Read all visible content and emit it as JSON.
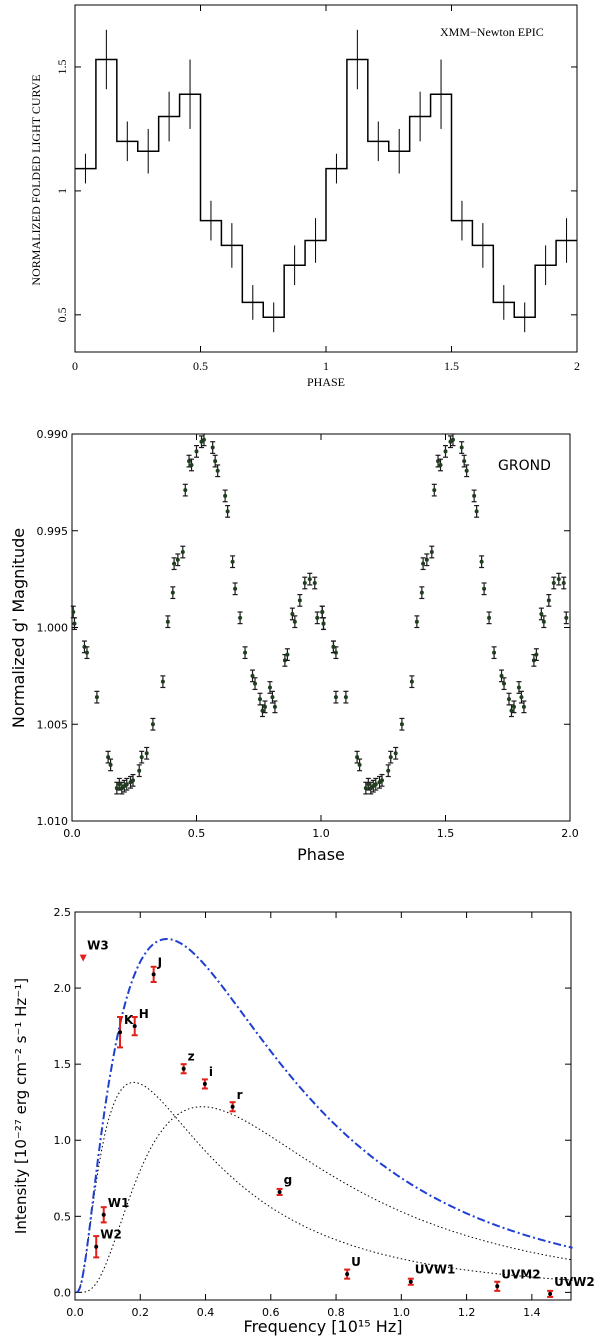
{
  "chart_data": [
    {
      "type": "line",
      "style": "step",
      "title": "",
      "annotation": "XMM−Newton EPIC",
      "xlabel": "PHASE",
      "ylabel": "NORMALIZED FOLDED LIGHT CURVE",
      "xlim": [
        0,
        2
      ],
      "ylim": [
        0.35,
        1.75
      ],
      "xticks": [
        {
          "v": 0,
          "label": "0"
        },
        {
          "v": 0.5,
          "label": "0.5"
        },
        {
          "v": 1,
          "label": "1"
        },
        {
          "v": 1.5,
          "label": "1.5"
        },
        {
          "v": 2,
          "label": "2"
        }
      ],
      "yticks": [
        {
          "v": 0.5,
          "label": "0.5"
        },
        {
          "v": 1,
          "label": "1"
        },
        {
          "v": 1.5,
          "label": "1.5"
        }
      ],
      "bin_width": 0.0833,
      "bin_starts": [
        0,
        0.0833,
        0.1667,
        0.25,
        0.3333,
        0.4167,
        0.5,
        0.5833,
        0.6667,
        0.75,
        0.8333,
        0.9167,
        1.0,
        1.0833,
        1.1667,
        1.25,
        1.3333,
        1.4167,
        1.5,
        1.5833,
        1.6667,
        1.75,
        1.8333,
        1.9167
      ],
      "values": [
        1.09,
        1.53,
        1.2,
        1.16,
        1.3,
        1.39,
        0.88,
        0.78,
        0.55,
        0.49,
        0.7,
        0.8,
        1.09,
        1.53,
        1.2,
        1.16,
        1.3,
        1.39,
        0.88,
        0.78,
        0.55,
        0.49,
        0.7,
        0.8
      ],
      "errors": [
        0.06,
        0.12,
        0.08,
        0.09,
        0.1,
        0.14,
        0.08,
        0.09,
        0.07,
        0.06,
        0.08,
        0.09,
        0.06,
        0.12,
        0.08,
        0.09,
        0.1,
        0.14,
        0.08,
        0.09,
        0.07,
        0.06,
        0.08,
        0.09
      ],
      "color": "#000000"
    },
    {
      "type": "scatter",
      "title": "",
      "annotation": "GROND",
      "xlabel": "Phase",
      "ylabel": "Normalized g' Magnitude",
      "xlim": [
        0.0,
        2.0
      ],
      "ylim": [
        1.01,
        0.99
      ],
      "inverted_y": true,
      "xticks": [
        {
          "v": 0.0,
          "label": "0.0"
        },
        {
          "v": 0.5,
          "label": "0.5"
        },
        {
          "v": 1.0,
          "label": "1.0"
        },
        {
          "v": 1.5,
          "label": "1.5"
        },
        {
          "v": 2.0,
          "label": "2.0"
        }
      ],
      "yticks": [
        {
          "v": 0.99,
          "label": "0.990"
        },
        {
          "v": 0.995,
          "label": "0.995"
        },
        {
          "v": 1.0,
          "label": "1.000"
        },
        {
          "v": 1.005,
          "label": "1.005"
        },
        {
          "v": 1.01,
          "label": "1.010"
        }
      ],
      "x": [
        0.005,
        0.01,
        0.05,
        0.06,
        0.1,
        0.145,
        0.155,
        0.18,
        0.19,
        0.2,
        0.21,
        0.22,
        0.235,
        0.245,
        0.27,
        0.28,
        0.3,
        0.325,
        0.365,
        0.385,
        0.405,
        0.41,
        0.425,
        0.445,
        0.455,
        0.47,
        0.48,
        0.5,
        0.52,
        0.53,
        0.565,
        0.575,
        0.585,
        0.615,
        0.625,
        0.645,
        0.655,
        0.675,
        0.695,
        0.725,
        0.735,
        0.755,
        0.765,
        0.775,
        0.795,
        0.805,
        0.815,
        0.855,
        0.865,
        0.885,
        0.895,
        0.915,
        0.935,
        0.955,
        0.975,
        0.985,
        1.005,
        1.01,
        1.05,
        1.06
      ],
      "y": [
        0.9992,
        0.9998,
        1.001,
        1.0013,
        1.0036,
        1.0067,
        1.0071,
        1.0083,
        1.0081,
        1.0083,
        1.0082,
        1.0081,
        1.008,
        1.0079,
        1.0074,
        1.0067,
        1.0065,
        1.005,
        1.0028,
        0.9997,
        0.9982,
        0.9967,
        0.9965,
        0.9961,
        0.9929,
        0.9914,
        0.9916,
        0.9909,
        0.9904,
        0.9903,
        0.9907,
        0.9914,
        0.9919,
        0.9932,
        0.994,
        0.9966,
        0.998,
        0.9995,
        1.0013,
        1.0025,
        1.0029,
        1.0037,
        1.0043,
        1.0041,
        1.0031,
        1.0036,
        1.0041,
        1.0017,
        1.0014,
        0.9993,
        0.9997,
        0.9986,
        0.9977,
        0.9975,
        0.9977,
        0.9995,
        0.9992,
        0.9998,
        1.001,
        1.0036
      ],
      "errors": 0.0003,
      "marker_color": "#1f3d1f",
      "errbar_color": "#1a1a1a"
    },
    {
      "type": "scatter",
      "title": "",
      "xlabel": "Frequency [10¹⁵ Hz]",
      "ylabel": "Intensity [10⁻²⁷ erg cm⁻² s⁻¹ Hz⁻¹]",
      "xlim": [
        0.0,
        1.52
      ],
      "ylim": [
        -0.05,
        2.5
      ],
      "xticks": [
        {
          "v": 0.0,
          "label": "0.0"
        },
        {
          "v": 0.2,
          "label": "0.2"
        },
        {
          "v": 0.4,
          "label": "0.4"
        },
        {
          "v": 0.6,
          "label": "0.6"
        },
        {
          "v": 0.8,
          "label": "0.8"
        },
        {
          "v": 1.0,
          "label": "1.0"
        },
        {
          "v": 1.2,
          "label": "1.2"
        },
        {
          "v": 1.4,
          "label": "1.4"
        }
      ],
      "yticks": [
        {
          "v": 0.0,
          "label": "0.0"
        },
        {
          "v": 0.5,
          "label": "0.5"
        },
        {
          "v": 1.0,
          "label": "1.0"
        },
        {
          "v": 1.5,
          "label": "1.5"
        },
        {
          "v": 2.0,
          "label": "2.0"
        },
        {
          "v": 2.5,
          "label": "2.5"
        }
      ],
      "points": [
        {
          "label": "W3",
          "x": 0.025,
          "y": 2.2,
          "err": 0.0,
          "upper_limit": true
        },
        {
          "label": "W2",
          "x": 0.065,
          "y": 0.3,
          "err": 0.07
        },
        {
          "label": "W1",
          "x": 0.088,
          "y": 0.51,
          "err": 0.05
        },
        {
          "label": "K",
          "x": 0.138,
          "y": 1.71,
          "err": 0.1
        },
        {
          "label": "H",
          "x": 0.183,
          "y": 1.75,
          "err": 0.06
        },
        {
          "label": "J",
          "x": 0.241,
          "y": 2.09,
          "err": 0.05
        },
        {
          "label": "z",
          "x": 0.333,
          "y": 1.47,
          "err": 0.03
        },
        {
          "label": "i",
          "x": 0.398,
          "y": 1.37,
          "err": 0.03
        },
        {
          "label": "r",
          "x": 0.483,
          "y": 1.22,
          "err": 0.03
        },
        {
          "label": "g",
          "x": 0.627,
          "y": 0.66,
          "err": 0.02
        },
        {
          "label": "U",
          "x": 0.834,
          "y": 0.12,
          "err": 0.03
        },
        {
          "label": "UVW1",
          "x": 1.029,
          "y": 0.07,
          "err": 0.02
        },
        {
          "label": "UVM2",
          "x": 1.294,
          "y": 0.04,
          "err": 0.03
        },
        {
          "label": "UVW2",
          "x": 1.456,
          "y": -0.01,
          "err": 0.02
        }
      ],
      "model": {
        "components": [
          {
            "amp": 1.38,
            "peak": 0.18,
            "width": 0.17,
            "style": "dotted",
            "color": "#000000"
          },
          {
            "amp": 1.22,
            "peak": 0.39,
            "width": 0.3,
            "style": "dotted",
            "color": "#000000"
          }
        ],
        "total_style": "dashdot",
        "total_color": "#1f3fd1"
      },
      "marker_color": "#000000",
      "errbar_color": "#e0201a"
    }
  ]
}
